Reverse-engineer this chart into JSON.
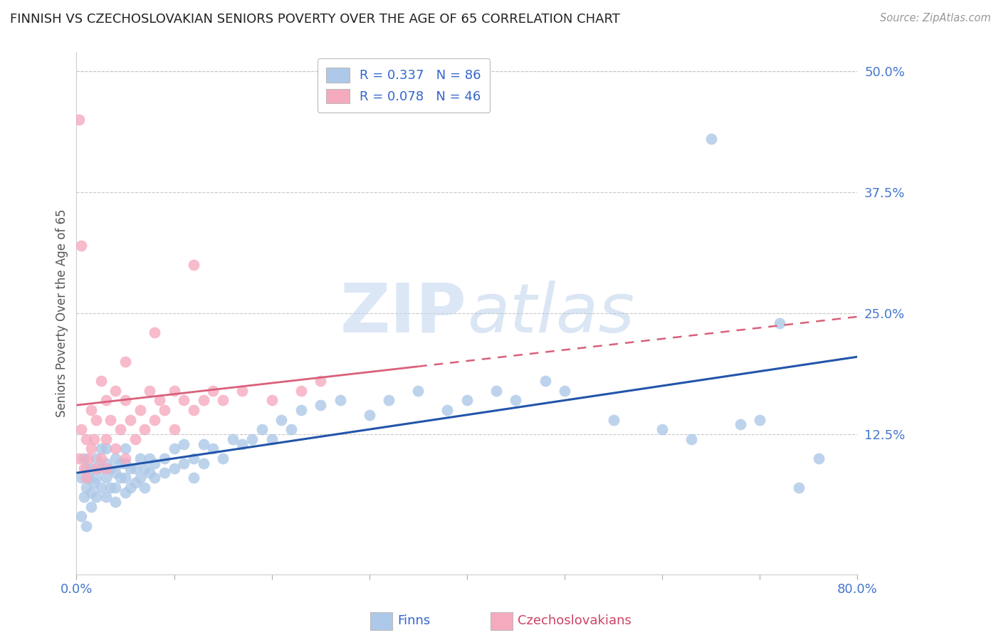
{
  "title": "FINNISH VS CZECHOSLOVAKIAN SENIORS POVERTY OVER THE AGE OF 65 CORRELATION CHART",
  "source": "Source: ZipAtlas.com",
  "ylabel": "Seniors Poverty Over the Age of 65",
  "background_color": "#ffffff",
  "finn_color": "#adc8e8",
  "czech_color": "#f5aabe",
  "finn_line_color": "#2255aa",
  "czech_line_color": "#d9607a",
  "legend_finn_label": "R = 0.337   N = 86",
  "legend_czech_label": "R = 0.078   N = 46",
  "watermark_zip": "ZIP",
  "watermark_atlas": "atlas",
  "xlim": [
    0.0,
    0.8
  ],
  "ylim": [
    -0.02,
    0.52
  ],
  "finn_x": [
    0.005,
    0.008,
    0.01,
    0.01,
    0.012,
    0.015,
    0.015,
    0.018,
    0.02,
    0.02,
    0.02,
    0.025,
    0.025,
    0.025,
    0.03,
    0.03,
    0.03,
    0.03,
    0.035,
    0.035,
    0.04,
    0.04,
    0.04,
    0.04,
    0.045,
    0.045,
    0.05,
    0.05,
    0.05,
    0.05,
    0.055,
    0.055,
    0.06,
    0.06,
    0.065,
    0.065,
    0.07,
    0.07,
    0.075,
    0.075,
    0.08,
    0.08,
    0.09,
    0.09,
    0.1,
    0.1,
    0.11,
    0.11,
    0.12,
    0.12,
    0.13,
    0.13,
    0.14,
    0.15,
    0.16,
    0.17,
    0.18,
    0.19,
    0.2,
    0.21,
    0.22,
    0.23,
    0.25,
    0.27,
    0.3,
    0.32,
    0.35,
    0.38,
    0.4,
    0.43,
    0.45,
    0.48,
    0.5,
    0.55,
    0.6,
    0.63,
    0.65,
    0.68,
    0.7,
    0.72,
    0.74,
    0.76,
    0.005,
    0.008,
    0.01,
    0.015
  ],
  "finn_y": [
    0.08,
    0.1,
    0.07,
    0.09,
    0.08,
    0.065,
    0.09,
    0.075,
    0.06,
    0.08,
    0.1,
    0.07,
    0.09,
    0.11,
    0.06,
    0.08,
    0.095,
    0.11,
    0.07,
    0.09,
    0.055,
    0.07,
    0.085,
    0.1,
    0.08,
    0.095,
    0.065,
    0.08,
    0.095,
    0.11,
    0.07,
    0.09,
    0.075,
    0.09,
    0.08,
    0.1,
    0.07,
    0.09,
    0.085,
    0.1,
    0.08,
    0.095,
    0.085,
    0.1,
    0.09,
    0.11,
    0.095,
    0.115,
    0.08,
    0.1,
    0.095,
    0.115,
    0.11,
    0.1,
    0.12,
    0.115,
    0.12,
    0.13,
    0.12,
    0.14,
    0.13,
    0.15,
    0.155,
    0.16,
    0.145,
    0.16,
    0.17,
    0.15,
    0.16,
    0.17,
    0.16,
    0.18,
    0.17,
    0.14,
    0.13,
    0.12,
    0.43,
    0.135,
    0.14,
    0.24,
    0.07,
    0.1,
    0.04,
    0.06,
    0.03,
    0.05
  ],
  "czech_x": [
    0.003,
    0.005,
    0.008,
    0.01,
    0.01,
    0.012,
    0.015,
    0.015,
    0.018,
    0.02,
    0.02,
    0.025,
    0.025,
    0.03,
    0.03,
    0.03,
    0.035,
    0.04,
    0.04,
    0.045,
    0.05,
    0.05,
    0.055,
    0.06,
    0.065,
    0.07,
    0.075,
    0.08,
    0.085,
    0.09,
    0.1,
    0.1,
    0.11,
    0.12,
    0.13,
    0.14,
    0.15,
    0.17,
    0.2,
    0.23,
    0.25,
    0.003,
    0.005,
    0.12,
    0.08,
    0.05
  ],
  "czech_y": [
    0.1,
    0.13,
    0.09,
    0.08,
    0.12,
    0.1,
    0.11,
    0.15,
    0.12,
    0.09,
    0.14,
    0.1,
    0.18,
    0.09,
    0.12,
    0.16,
    0.14,
    0.11,
    0.17,
    0.13,
    0.1,
    0.16,
    0.14,
    0.12,
    0.15,
    0.13,
    0.17,
    0.14,
    0.16,
    0.15,
    0.13,
    0.17,
    0.16,
    0.15,
    0.16,
    0.17,
    0.16,
    0.17,
    0.16,
    0.17,
    0.18,
    0.45,
    0.32,
    0.3,
    0.23,
    0.2
  ]
}
